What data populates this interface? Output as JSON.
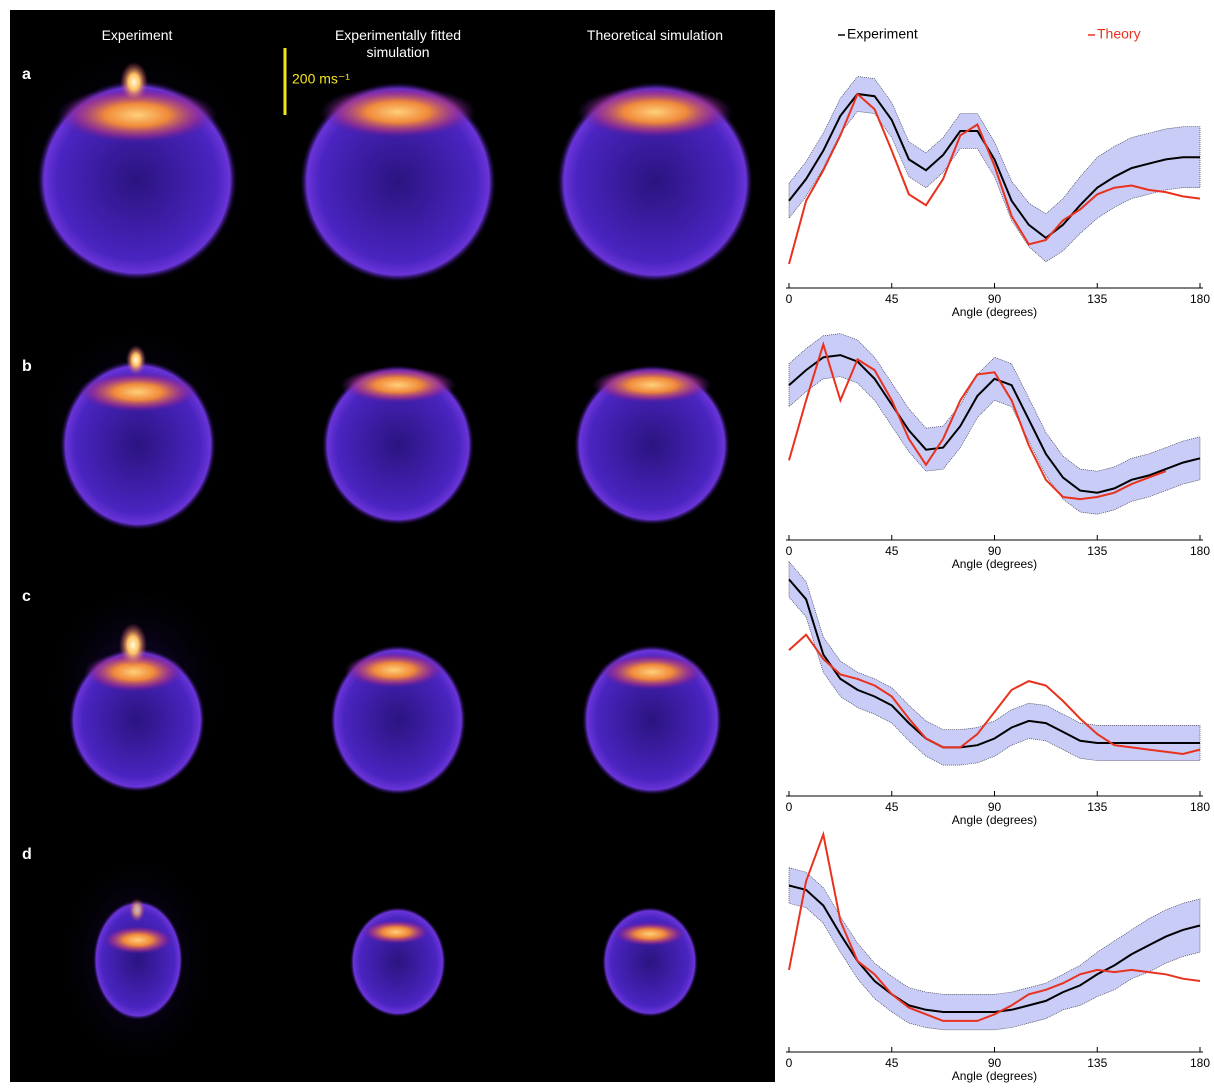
{
  "headers": [
    "Experiment",
    "Experimentally fitted simulation",
    "Theoretical simulation"
  ],
  "scale_bar": "200 ms⁻¹",
  "chart_data": [
    {
      "type": "line",
      "label": "a",
      "xlabel": "Angle (degrees)",
      "xlim": [
        0,
        180
      ],
      "ylim": [
        0,
        1
      ],
      "xticks": [
        0,
        45,
        90,
        135,
        180
      ],
      "x": [
        0,
        7.5,
        15,
        22.5,
        30,
        37.5,
        45,
        52.5,
        60,
        67.5,
        75,
        82.5,
        90,
        97.5,
        105,
        112.5,
        120,
        127.5,
        135,
        142.5,
        150,
        157.5,
        165,
        172.5,
        180
      ],
      "series": [
        {
          "name": "Experiment",
          "color": "#000000",
          "band_color": "#c9ccf6",
          "values": [
            0.4,
            0.5,
            0.63,
            0.79,
            0.89,
            0.88,
            0.77,
            0.59,
            0.54,
            0.61,
            0.72,
            0.72,
            0.59,
            0.4,
            0.29,
            0.23,
            0.29,
            0.38,
            0.46,
            0.51,
            0.55,
            0.57,
            0.59,
            0.6,
            0.6
          ],
          "upper": [
            0.48,
            0.58,
            0.71,
            0.87,
            0.97,
            0.96,
            0.85,
            0.67,
            0.62,
            0.69,
            0.8,
            0.8,
            0.67,
            0.49,
            0.39,
            0.34,
            0.41,
            0.51,
            0.6,
            0.65,
            0.69,
            0.71,
            0.73,
            0.74,
            0.74
          ],
          "lower": [
            0.32,
            0.42,
            0.55,
            0.71,
            0.81,
            0.8,
            0.69,
            0.51,
            0.46,
            0.53,
            0.64,
            0.64,
            0.51,
            0.31,
            0.19,
            0.12,
            0.17,
            0.25,
            0.32,
            0.37,
            0.41,
            0.43,
            0.45,
            0.46,
            0.46
          ]
        },
        {
          "name": "Theory",
          "color": "#e8321e",
          "values": [
            0.11,
            0.4,
            0.54,
            0.7,
            0.89,
            0.82,
            0.63,
            0.43,
            0.38,
            0.5,
            0.7,
            0.75,
            0.56,
            0.33,
            0.2,
            0.22,
            0.31,
            0.36,
            0.43,
            0.46,
            0.47,
            0.45,
            0.44,
            0.42,
            0.41
          ]
        }
      ]
    },
    {
      "type": "line",
      "label": "b",
      "xlabel": "Angle (degrees)",
      "xlim": [
        0,
        180
      ],
      "ylim": [
        0,
        1
      ],
      "xticks": [
        0,
        45,
        90,
        135,
        180
      ],
      "x": [
        0,
        7.5,
        15,
        22.5,
        30,
        37.5,
        45,
        52.5,
        60,
        67.5,
        75,
        82.5,
        90,
        97.5,
        105,
        112.5,
        120,
        127.5,
        135,
        142.5,
        150,
        157.5,
        165,
        172.5,
        180
      ],
      "series": [
        {
          "name": "Experiment",
          "color": "#000000",
          "band_color": "#c9ccf6",
          "values": [
            0.72,
            0.79,
            0.85,
            0.86,
            0.83,
            0.75,
            0.63,
            0.51,
            0.42,
            0.43,
            0.53,
            0.67,
            0.75,
            0.72,
            0.56,
            0.4,
            0.29,
            0.23,
            0.22,
            0.24,
            0.28,
            0.3,
            0.33,
            0.36,
            0.38
          ],
          "upper": [
            0.82,
            0.89,
            0.95,
            0.96,
            0.93,
            0.85,
            0.73,
            0.61,
            0.52,
            0.53,
            0.63,
            0.77,
            0.85,
            0.82,
            0.66,
            0.5,
            0.39,
            0.33,
            0.32,
            0.34,
            0.38,
            0.4,
            0.43,
            0.46,
            0.48
          ],
          "lower": [
            0.62,
            0.69,
            0.75,
            0.76,
            0.73,
            0.65,
            0.53,
            0.41,
            0.32,
            0.33,
            0.43,
            0.57,
            0.65,
            0.62,
            0.46,
            0.3,
            0.19,
            0.13,
            0.12,
            0.14,
            0.18,
            0.2,
            0.23,
            0.26,
            0.28
          ]
        },
        {
          "name": "Theory",
          "color": "#e8321e",
          "values": [
            0.37,
            0.65,
            0.91,
            0.65,
            0.84,
            0.79,
            0.65,
            0.47,
            0.35,
            0.47,
            0.65,
            0.77,
            0.78,
            0.65,
            0.44,
            0.28,
            0.2,
            0.19,
            0.2,
            0.22,
            0.26,
            0.29,
            0.32,
            null,
            null
          ]
        }
      ]
    },
    {
      "type": "line",
      "label": "c",
      "xlabel": "Angle (degrees)",
      "xlim": [
        0,
        180
      ],
      "ylim": [
        0,
        1
      ],
      "xticks": [
        0,
        45,
        90,
        135,
        180
      ],
      "x": [
        0,
        7.5,
        15,
        22.5,
        30,
        37.5,
        45,
        52.5,
        60,
        67.5,
        75,
        82.5,
        90,
        97.5,
        105,
        112.5,
        120,
        127.5,
        135,
        142.5,
        150,
        157.5,
        165,
        172.5,
        180
      ],
      "series": [
        {
          "name": "Experiment",
          "color": "#000000",
          "band_color": "#c9ccf6",
          "values": [
            0.98,
            0.89,
            0.64,
            0.53,
            0.48,
            0.45,
            0.41,
            0.33,
            0.26,
            0.22,
            0.22,
            0.23,
            0.26,
            0.31,
            0.34,
            0.33,
            0.29,
            0.25,
            0.24,
            0.24,
            0.24,
            0.24,
            0.24,
            0.24,
            0.24
          ],
          "upper": [
            1.06,
            0.97,
            0.72,
            0.61,
            0.56,
            0.53,
            0.49,
            0.41,
            0.34,
            0.3,
            0.3,
            0.31,
            0.34,
            0.39,
            0.42,
            0.41,
            0.37,
            0.33,
            0.32,
            0.32,
            0.32,
            0.32,
            0.32,
            0.32,
            0.32
          ],
          "lower": [
            0.9,
            0.81,
            0.56,
            0.45,
            0.4,
            0.37,
            0.33,
            0.25,
            0.18,
            0.14,
            0.14,
            0.15,
            0.18,
            0.23,
            0.26,
            0.25,
            0.21,
            0.17,
            0.16,
            0.16,
            0.16,
            0.16,
            0.16,
            0.16,
            0.16
          ]
        },
        {
          "name": "Theory",
          "color": "#e8321e",
          "values": [
            0.66,
            0.73,
            0.62,
            0.55,
            0.53,
            0.5,
            0.45,
            0.35,
            0.26,
            0.22,
            0.22,
            0.28,
            0.38,
            0.48,
            0.52,
            0.5,
            0.43,
            0.35,
            0.28,
            0.23,
            0.22,
            0.21,
            0.2,
            0.19,
            0.21
          ]
        }
      ]
    },
    {
      "type": "line",
      "label": "d",
      "xlabel": "Angle (degrees)",
      "xlim": [
        0,
        180
      ],
      "ylim": [
        0,
        1
      ],
      "xticks": [
        0,
        45,
        90,
        135,
        180
      ],
      "x": [
        0,
        7.5,
        15,
        22.5,
        30,
        37.5,
        45,
        52.5,
        60,
        67.5,
        75,
        82.5,
        90,
        97.5,
        105,
        112.5,
        120,
        127.5,
        135,
        142.5,
        150,
        157.5,
        165,
        172.5,
        180
      ],
      "series": [
        {
          "name": "Experiment",
          "color": "#000000",
          "band_color": "#c9ccf6",
          "values": [
            0.75,
            0.73,
            0.66,
            0.53,
            0.41,
            0.32,
            0.26,
            0.21,
            0.19,
            0.18,
            0.18,
            0.18,
            0.18,
            0.19,
            0.21,
            0.23,
            0.27,
            0.3,
            0.35,
            0.39,
            0.44,
            0.48,
            0.52,
            0.55,
            0.57
          ],
          "upper": [
            0.83,
            0.81,
            0.74,
            0.61,
            0.49,
            0.4,
            0.34,
            0.29,
            0.27,
            0.26,
            0.26,
            0.26,
            0.26,
            0.27,
            0.29,
            0.31,
            0.35,
            0.39,
            0.45,
            0.5,
            0.55,
            0.6,
            0.64,
            0.67,
            0.69
          ],
          "lower": [
            0.67,
            0.65,
            0.58,
            0.45,
            0.33,
            0.24,
            0.18,
            0.13,
            0.11,
            0.1,
            0.1,
            0.1,
            0.1,
            0.11,
            0.13,
            0.15,
            0.19,
            0.21,
            0.25,
            0.28,
            0.33,
            0.36,
            0.4,
            0.43,
            0.45
          ]
        },
        {
          "name": "Theory",
          "color": "#e8321e",
          "values": [
            0.37,
            0.77,
            0.98,
            0.59,
            0.41,
            0.35,
            0.26,
            0.2,
            0.17,
            0.14,
            0.14,
            0.14,
            0.17,
            0.21,
            0.26,
            0.28,
            0.31,
            0.35,
            0.37,
            0.36,
            0.37,
            0.36,
            0.35,
            0.33,
            0.32
          ]
        }
      ]
    }
  ]
}
